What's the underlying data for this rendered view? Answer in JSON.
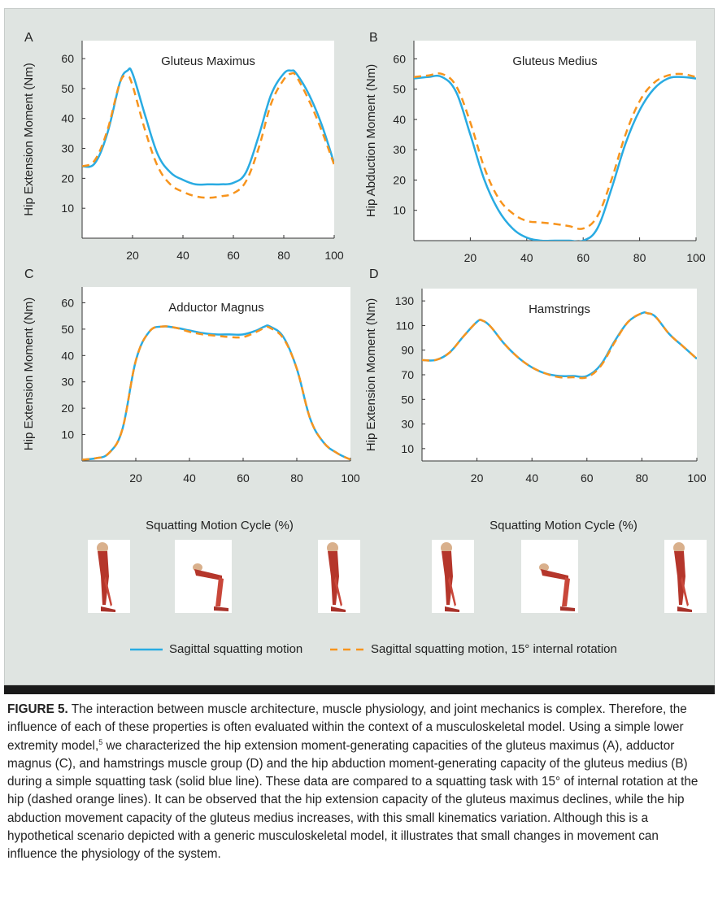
{
  "colors": {
    "solid": "#29abe2",
    "dashed": "#f7941d",
    "panel_bg": "#dfe4e1",
    "plot_bg": "#ffffff",
    "caption_bar": "#1a1a1a"
  },
  "chart_data": [
    {
      "type": "line",
      "panel_letter": "A",
      "title": "Gluteus Maximus",
      "xlabel": "",
      "ylabel": "Hip Extension Moment (Nm)",
      "xlim": [
        0,
        100
      ],
      "ylim": [
        0,
        66
      ],
      "xticks": [
        20,
        40,
        60,
        80,
        100
      ],
      "yticks": [
        10,
        20,
        30,
        40,
        50,
        60
      ],
      "x": [
        0,
        5,
        10,
        15,
        18,
        20,
        25,
        30,
        35,
        40,
        45,
        50,
        55,
        60,
        65,
        70,
        75,
        80,
        83,
        85,
        90,
        95,
        100
      ],
      "series": [
        {
          "name": "Sagittal squatting motion",
          "style": "solid",
          "values": [
            24,
            25,
            35,
            52,
            56,
            55,
            41,
            28,
            22,
            19.5,
            18,
            18,
            18,
            18.5,
            22,
            34,
            48,
            55,
            56,
            55,
            48,
            38,
            25
          ]
        },
        {
          "name": "Sagittal squatting motion, 15° internal rotation",
          "style": "dashed",
          "values": [
            24,
            26,
            36,
            52,
            54,
            51,
            36,
            24,
            18,
            15.5,
            14,
            13.5,
            14,
            15,
            19,
            30,
            45,
            53,
            55,
            54,
            46,
            36,
            24.5
          ]
        }
      ]
    },
    {
      "type": "line",
      "panel_letter": "B",
      "title": "Gluteus Medius",
      "xlabel": "",
      "ylabel": "Hip Abduction Moment (Nm)",
      "xlim": [
        0,
        100
      ],
      "ylim": [
        0,
        66
      ],
      "xticks": [
        20,
        40,
        60,
        80,
        100
      ],
      "yticks": [
        10,
        20,
        30,
        40,
        50,
        60
      ],
      "x": [
        0,
        5,
        10,
        15,
        20,
        25,
        30,
        35,
        40,
        45,
        50,
        55,
        60,
        65,
        70,
        75,
        80,
        85,
        90,
        95,
        100
      ],
      "series": [
        {
          "name": "Sagittal squatting motion",
          "style": "solid",
          "values": [
            53.5,
            54,
            54,
            49,
            35,
            20,
            10,
            4,
            1,
            0,
            0,
            0,
            0,
            4,
            17,
            32,
            43,
            50,
            53.5,
            54,
            53.5
          ]
        },
        {
          "name": "Sagittal squatting motion, 15° internal rotation",
          "style": "dashed",
          "values": [
            54,
            54.5,
            55,
            51,
            39,
            24,
            14,
            9,
            6.5,
            6,
            5.5,
            4.8,
            4,
            8,
            20,
            35,
            46,
            52,
            54.5,
            55,
            54
          ]
        }
      ]
    },
    {
      "type": "line",
      "panel_letter": "C",
      "title": "Adductor Magnus",
      "xlabel": "Squatting Motion Cycle (%)",
      "ylabel": "Hip Extension Moment (Nm)",
      "xlim": [
        0,
        100
      ],
      "ylim": [
        0,
        66
      ],
      "xticks": [
        20,
        40,
        60,
        80,
        100
      ],
      "yticks": [
        10,
        20,
        30,
        40,
        50,
        60
      ],
      "x": [
        0,
        5,
        10,
        15,
        20,
        25,
        30,
        35,
        40,
        45,
        50,
        55,
        60,
        65,
        68,
        70,
        75,
        80,
        85,
        90,
        95,
        100
      ],
      "series": [
        {
          "name": "Sagittal squatting motion",
          "style": "solid",
          "values": [
            0.5,
            1,
            3,
            12,
            38,
            49,
            51,
            50.5,
            49.5,
            48.5,
            48,
            48,
            48,
            49.5,
            51,
            51,
            47,
            35,
            16,
            7,
            3,
            0.5
          ]
        },
        {
          "name": "Sagittal squatting motion, 15° internal rotation",
          "style": "dashed",
          "values": [
            0.5,
            1,
            3,
            12,
            38,
            49,
            51,
            50.5,
            49,
            48,
            47.5,
            47,
            47,
            49,
            50.5,
            50.5,
            46.5,
            35,
            16,
            7,
            3,
            0.5
          ]
        }
      ]
    },
    {
      "type": "line",
      "panel_letter": "D",
      "title": "Hamstrings",
      "xlabel": "Squatting Motion Cycle (%)",
      "ylabel": "Hip Extension Moment (Nm)",
      "xlim": [
        0,
        100
      ],
      "ylim": [
        0,
        140
      ],
      "xticks": [
        20,
        40,
        60,
        80,
        100
      ],
      "yticks": [
        10,
        30,
        50,
        70,
        90,
        110,
        130
      ],
      "x": [
        0,
        5,
        10,
        15,
        20,
        22,
        25,
        30,
        35,
        40,
        45,
        50,
        55,
        60,
        65,
        70,
        75,
        80,
        82,
        85,
        90,
        95,
        100
      ],
      "series": [
        {
          "name": "Sagittal squatting motion",
          "style": "solid",
          "values": [
            82,
            82,
            88,
            101,
            113,
            114,
            109,
            95,
            84,
            76,
            71,
            69,
            69,
            69,
            78,
            97,
            113,
            120,
            120,
            117,
            103,
            93,
            83
          ]
        },
        {
          "name": "Sagittal squatting motion, 15° internal rotation",
          "style": "dashed",
          "values": [
            82,
            82,
            88,
            101,
            113,
            114,
            109,
            95,
            84,
            76,
            71,
            68,
            68,
            68,
            77,
            96,
            113,
            120,
            120,
            117,
            103,
            93,
            83
          ]
        }
      ]
    }
  ],
  "squat_label_left": "Squatting Motion Cycle (%)",
  "squat_label_right": "Squatting Motion Cycle (%)",
  "legend": {
    "solid_label": "Sagittal squatting motion",
    "dashed_label": "Sagittal squatting motion, 15° internal rotation"
  },
  "caption": {
    "label": "FIGURE 5.",
    "text_part1": " The interaction between muscle architecture, muscle physiology, and joint mechanics is complex. Therefore, the influence of each of these properties is often evaluated within the context of a musculoskeletal model. Using a simple lower extremity model,",
    "ref": "5",
    "text_part2": " we characterized the hip extension moment-generating capacities of the gluteus maximus (A), adductor magnus (C), and hamstrings muscle group (D) and the hip abduction moment-generating capacity of the gluteus medius (B) during a simple squatting task (solid blue line). These data are compared to a squatting task with 15° of internal rotation at the hip (dashed orange lines). It can be observed that the hip extension capacity of the gluteus maximus declines, while the hip abduction movement capacity of the gluteus medius increases, with this small kinematics variation. Although this is a hypothetical scenario depicted with a generic musculoskeletal model, it illustrates that small changes in movement can influence the physiology of the system."
  }
}
